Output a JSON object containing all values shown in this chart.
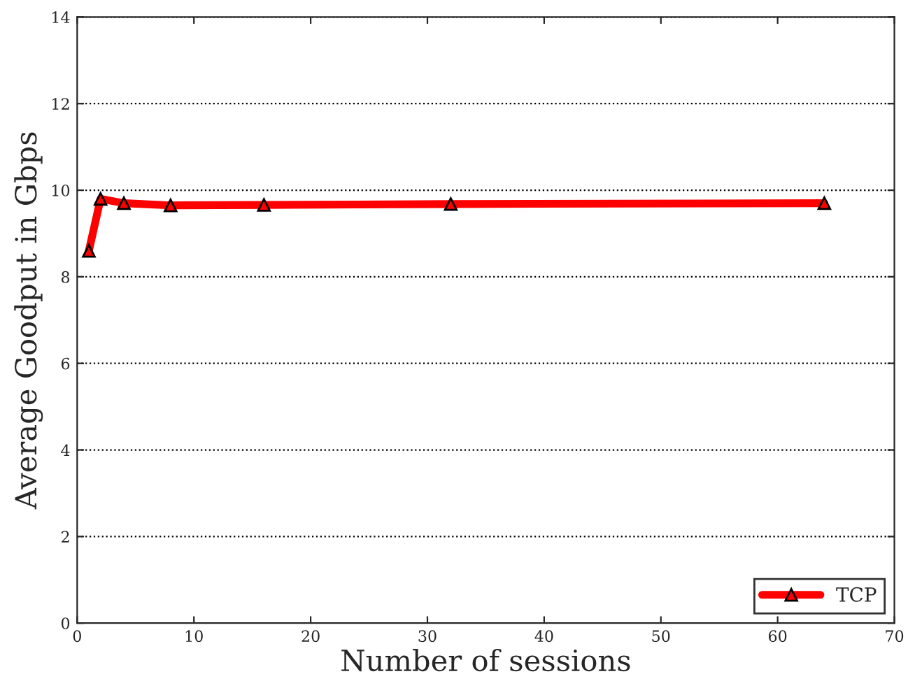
{
  "chart_data": {
    "type": "line",
    "xlabel": "Number of sessions",
    "ylabel": "Average Goodput in Gbps",
    "x": [
      1,
      2,
      4,
      8,
      16,
      32,
      64
    ],
    "series": [
      {
        "name": "TCP",
        "color": "#ff0000",
        "values": [
          8.6,
          9.8,
          9.7,
          9.65,
          9.66,
          9.68,
          9.7
        ]
      }
    ],
    "xlim": [
      0,
      70
    ],
    "xticks": [
      0,
      10,
      20,
      30,
      40,
      50,
      60,
      70
    ],
    "ylim": [
      0,
      14
    ],
    "yticks": [
      0,
      2,
      4,
      6,
      8,
      10,
      12,
      14
    ],
    "grid": "y",
    "legend": "bottom right",
    "marker": "triangle",
    "line_style": "solid"
  }
}
